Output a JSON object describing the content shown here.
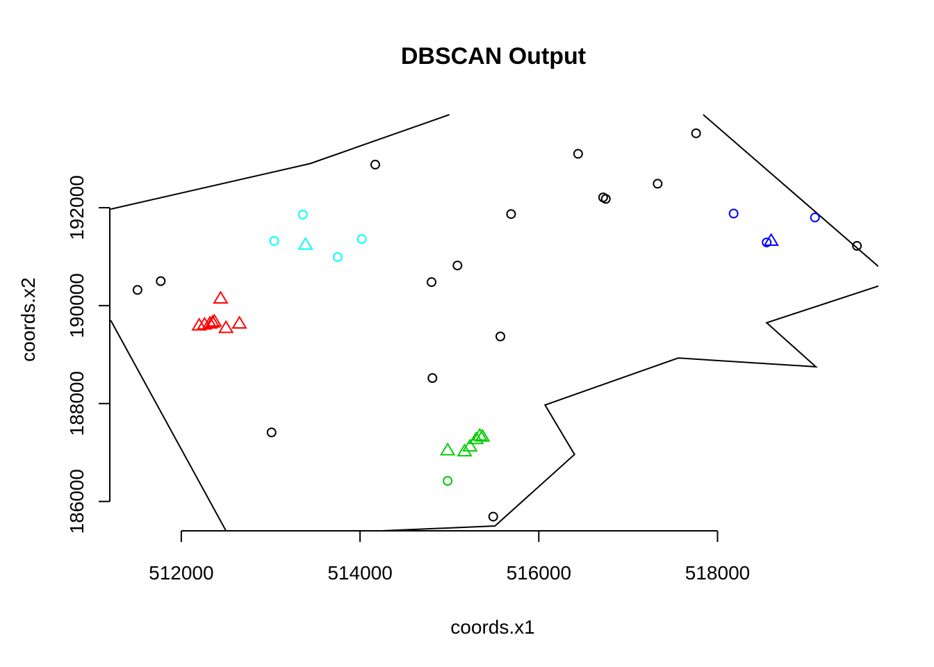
{
  "chart_data": {
    "type": "scatter",
    "title": "DBSCAN Output",
    "xlabel": "coords.x1",
    "ylabel": "coords.x2",
    "xlim": [
      511200,
      519800
    ],
    "ylim": [
      185400,
      194000
    ],
    "x_ticks": [
      512000,
      514000,
      516000,
      518000
    ],
    "y_ticks": [
      186000,
      188000,
      190000,
      192000
    ],
    "x_tick_labels": [
      "512000",
      "514000",
      "516000",
      "518000"
    ],
    "y_tick_labels": [
      "186000",
      "188000",
      "190000",
      "192000"
    ],
    "legend": "none",
    "grid": false,
    "boundary": [
      [
        [
          511210,
          191970
        ],
        [
          513440,
          192900
        ],
        [
          515000,
          193900
        ]
      ],
      [
        [
          517840,
          193900
        ],
        [
          519800,
          190800
        ]
      ],
      [
        [
          519800,
          190400
        ],
        [
          518550,
          189650
        ],
        [
          519100,
          188750
        ],
        [
          517560,
          188930
        ],
        [
          516070,
          187970
        ],
        [
          516400,
          186960
        ],
        [
          515510,
          185500
        ],
        [
          514240,
          185400
        ]
      ],
      [
        [
          511210,
          189700
        ],
        [
          512500,
          185400
        ]
      ]
    ],
    "series": [
      {
        "color": "#000000",
        "marker": "circle",
        "points": [
          [
            511510,
            190320
          ],
          [
            511770,
            190500
          ],
          [
            513010,
            187410
          ],
          [
            514170,
            192880
          ],
          [
            514800,
            190480
          ],
          [
            514810,
            188520
          ],
          [
            515090,
            190820
          ],
          [
            515570,
            189370
          ],
          [
            515490,
            185690
          ],
          [
            515690,
            191870
          ],
          [
            516440,
            193100
          ],
          [
            516720,
            192210
          ],
          [
            516750,
            192180
          ],
          [
            517330,
            192490
          ],
          [
            517760,
            193520
          ],
          [
            519560,
            191220
          ]
        ]
      },
      {
        "color": "#ff0000",
        "marker": "triangle",
        "points": [
          [
            512200,
            189600
          ],
          [
            512260,
            189620
          ],
          [
            512320,
            189640
          ],
          [
            512350,
            189660
          ],
          [
            512370,
            189680
          ],
          [
            512440,
            190150
          ],
          [
            512500,
            189550
          ],
          [
            512650,
            189640
          ]
        ]
      },
      {
        "color": "#00ffff",
        "marker": "circle",
        "points": [
          [
            513040,
            191320
          ],
          [
            513360,
            191860
          ],
          [
            513750,
            190990
          ],
          [
            514020,
            191360
          ]
        ]
      },
      {
        "color": "#00ffff",
        "marker": "triangle",
        "points": [
          [
            513390,
            191250
          ]
        ]
      },
      {
        "color": "#00cd00",
        "marker": "triangle",
        "points": [
          [
            514980,
            187050
          ],
          [
            515170,
            187030
          ],
          [
            515230,
            187130
          ],
          [
            515300,
            187280
          ],
          [
            515340,
            187350
          ],
          [
            515370,
            187330
          ]
        ]
      },
      {
        "color": "#00cd00",
        "marker": "circle",
        "points": [
          [
            514980,
            186420
          ]
        ]
      },
      {
        "color": "#0000ff",
        "marker": "circle",
        "points": [
          [
            518180,
            191880
          ],
          [
            518550,
            191290
          ],
          [
            519090,
            191800
          ]
        ]
      },
      {
        "color": "#0000ff",
        "marker": "triangle",
        "points": [
          [
            518600,
            191330
          ]
        ]
      }
    ]
  }
}
